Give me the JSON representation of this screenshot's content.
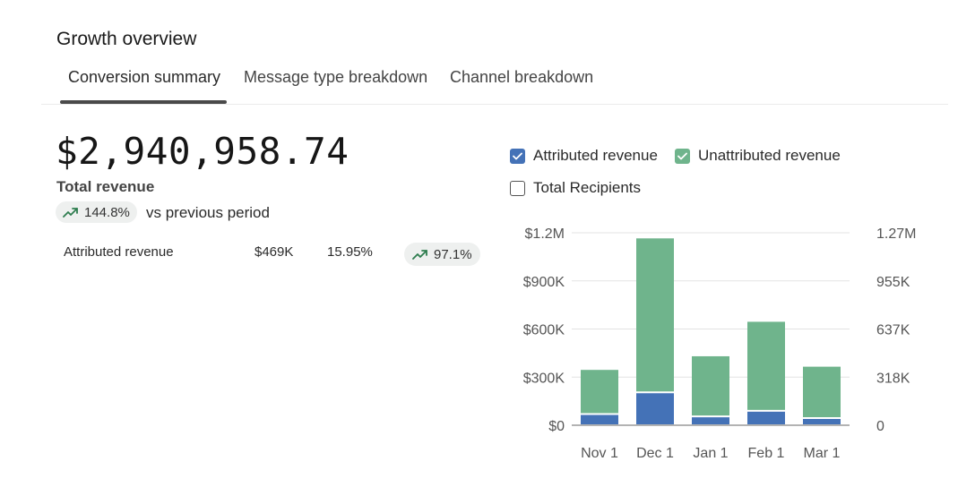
{
  "title": "Growth overview",
  "tabs": [
    {
      "label": "Conversion summary",
      "active": true
    },
    {
      "label": "Message type breakdown",
      "active": false
    },
    {
      "label": "Channel breakdown",
      "active": false
    }
  ],
  "summary": {
    "total_value": "$2,940,958.74",
    "total_label": "Total revenue",
    "change": "144.8%",
    "change_suffix": "vs previous period",
    "change_icon": "trend-up-icon"
  },
  "breakdown_row": {
    "label": "Attributed revenue",
    "value": "$469K",
    "share": "15.95%",
    "change": "97.1%"
  },
  "legend": [
    {
      "label": "Attributed revenue",
      "checked": true,
      "color": "#4472b7"
    },
    {
      "label": "Unattributed revenue",
      "checked": true,
      "color": "#6fb48c"
    },
    {
      "label": "Total Recipients",
      "checked": false
    }
  ],
  "colors": {
    "attributed": "#4472b7",
    "unattributed": "#6fb48c",
    "trend": "#2e7d4f"
  },
  "chart_data": {
    "type": "bar",
    "stacked": true,
    "categories": [
      "Nov 1",
      "Dec 1",
      "Jan 1",
      "Feb 1",
      "Mar 1"
    ],
    "series": [
      {
        "name": "Attributed revenue",
        "values": [
          70000,
          205000,
          55000,
          90000,
          45000
        ]
      },
      {
        "name": "Unattributed revenue",
        "values": [
          275000,
          960000,
          375000,
          555000,
          320000
        ]
      }
    ],
    "ylim": [
      0,
      1200000
    ],
    "left_ticks": [
      "$0",
      "$300K",
      "$600K",
      "$900K",
      "$1.2M"
    ],
    "right_ticks": [
      "0",
      "318K",
      "637K",
      "955K",
      "1.27M"
    ],
    "grid": true
  }
}
